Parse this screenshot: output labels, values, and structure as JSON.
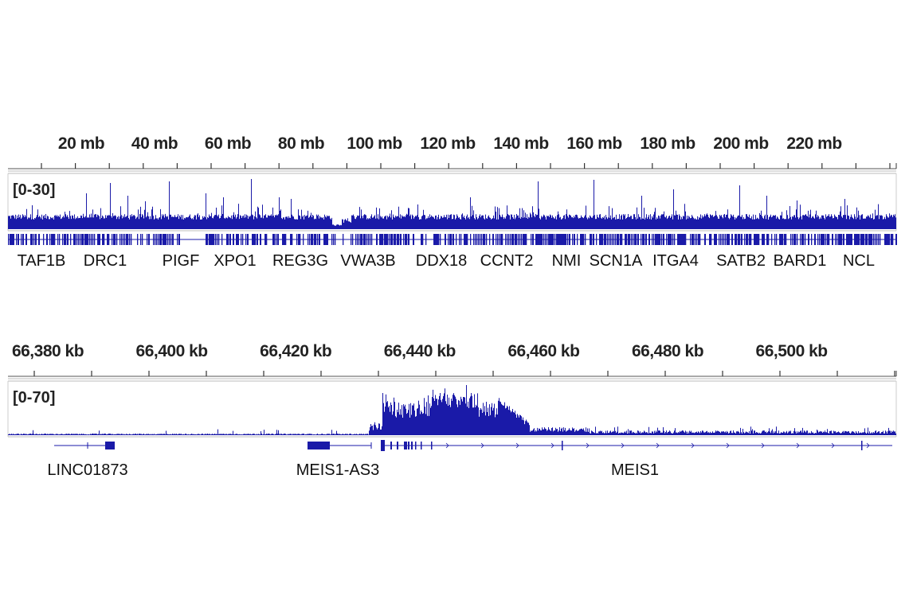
{
  "chart_data": [
    {
      "type": "area",
      "view": "chromosome",
      "x_unit": "mb",
      "x_tick_labels": [
        "20 mb",
        "40 mb",
        "60 mb",
        "80 mb",
        "100 mb",
        "120 mb",
        "140 mb",
        "160 mb",
        "180 mb",
        "200 mb",
        "220 mb"
      ],
      "x_tick_values": [
        20,
        40,
        60,
        80,
        100,
        120,
        140,
        160,
        180,
        200,
        220
      ],
      "data_range_label": "[0-30]",
      "ylim": [
        0,
        30
      ],
      "series_color": "#1a1aa8",
      "genes": [
        {
          "name": "TAF1B",
          "mb": 4
        },
        {
          "name": "DRC1",
          "mb": 26
        },
        {
          "name": "PIGF",
          "mb": 47
        },
        {
          "name": "XPO1",
          "mb": 61
        },
        {
          "name": "REG3G",
          "mb": 79
        },
        {
          "name": "VWA3B",
          "mb": 98
        },
        {
          "name": "DDX18",
          "mb": 117
        },
        {
          "name": "CCNT2",
          "mb": 135
        },
        {
          "name": "NMI",
          "mb": 152
        },
        {
          "name": "SCN1A",
          "mb": 166
        },
        {
          "name": "ITGA4",
          "mb": 182
        },
        {
          "name": "SATB2",
          "mb": 199
        },
        {
          "name": "BARD1",
          "mb": 215
        },
        {
          "name": "NCL",
          "mb": 232
        }
      ]
    },
    {
      "type": "area",
      "view": "locus",
      "x_unit": "kb",
      "x_tick_labels": [
        "66,380 kb",
        "66,400 kb",
        "66,420 kb",
        "66,440 kb",
        "66,460 kb",
        "66,480 kb",
        "66,500 kb"
      ],
      "x_tick_values": [
        66380,
        66400,
        66420,
        66440,
        66460,
        66480,
        66500
      ],
      "data_range_label": "[0-70]",
      "ylim": [
        0,
        70
      ],
      "series_color": "#1a1aa8",
      "genes": [
        {
          "name": "LINC01873",
          "kb": 66387
        },
        {
          "name": "MEIS1-AS3",
          "kb": 66425
        },
        {
          "name": "MEIS1",
          "kb": 66468
        }
      ]
    }
  ]
}
